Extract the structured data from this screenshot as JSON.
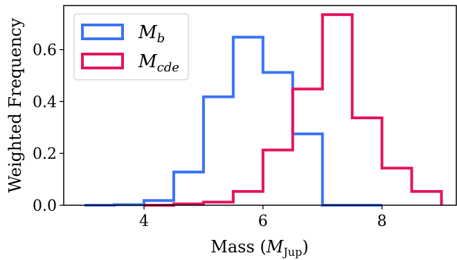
{
  "chart_data": {
    "type": "histogram",
    "xlabel": "Mass (",
    "xlabel_math": "M",
    "xlabel_sub": "Jup",
    "xlabel_close": ")",
    "ylabel": "Weighted Frequency",
    "xlim": [
      2.65,
      9.25
    ],
    "ylim": [
      0,
      0.77
    ],
    "xticks": [
      4,
      6,
      8
    ],
    "yticks": [
      0.0,
      0.2,
      0.4,
      0.6
    ],
    "ytick_labels": [
      "0.0",
      "0.2",
      "0.4",
      "0.6"
    ],
    "legend_position": "upper-left",
    "grid": false,
    "series": [
      {
        "name": "M_b",
        "legend_main": "M",
        "legend_sub": "b",
        "color": "#3b73f5",
        "bins": [
          3.0,
          3.5,
          4.0,
          4.5,
          5.0,
          5.5,
          6.0,
          6.5,
          7.0,
          7.5,
          8.0
        ],
        "values": [
          0.0,
          0.002,
          0.018,
          0.128,
          0.418,
          0.648,
          0.512,
          0.275,
          0.0,
          0.0
        ]
      },
      {
        "name": "M_cde",
        "legend_main": "M",
        "legend_sub": "cde",
        "color": "#e3135f",
        "bins": [
          4.0,
          4.5,
          5.0,
          5.5,
          6.0,
          6.5,
          7.0,
          7.5,
          8.0,
          8.5,
          9.0
        ],
        "values": [
          0.0,
          0.005,
          0.012,
          0.053,
          0.213,
          0.448,
          0.735,
          0.337,
          0.143,
          0.053
        ]
      }
    ]
  }
}
